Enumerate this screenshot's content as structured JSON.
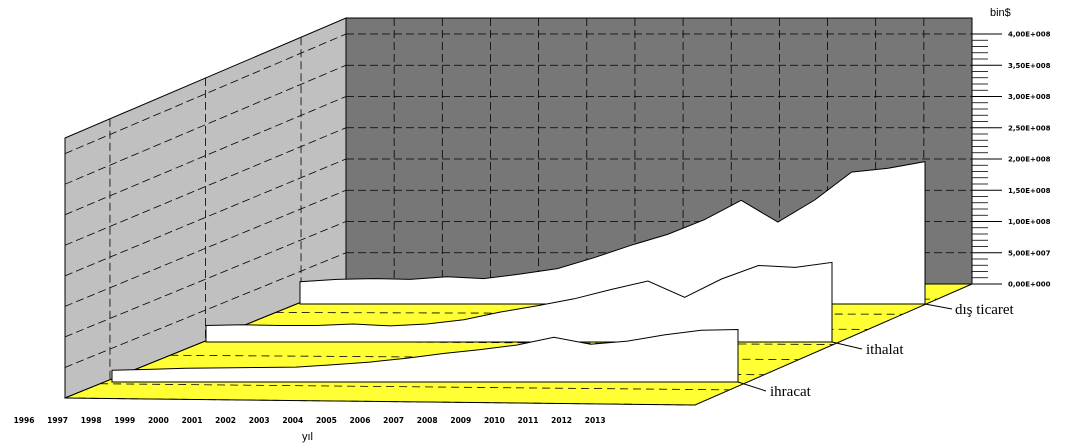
{
  "chart_data": {
    "type": "area",
    "title": "",
    "subtitle": "",
    "unit_label": "bin$",
    "xlabel": "yıl",
    "ylabel": "",
    "x_tick_labels": [
      "1996",
      "1997",
      "1998",
      "1999",
      "2000",
      "2001",
      "2002",
      "2003",
      "2004",
      "2005",
      "2006",
      "2007",
      "2008",
      "2009",
      "2010",
      "2011",
      "2012",
      "2013"
    ],
    "y_tick_labels": [
      "0,00E+000",
      "5,00E+007",
      "1,00E+008",
      "1,50E+008",
      "2,00E+008",
      "2,50E+008",
      "3,00E+008",
      "3,50E+008",
      "4,00E+008"
    ],
    "ylim": [
      0,
      400000000
    ],
    "grid": true,
    "colors": {
      "back_wall": "#777777",
      "side_wall": "#c0c0c0",
      "floor": "#ffff33",
      "series_fill": "#ffffff"
    },
    "series": [
      {
        "name": "dış ticaret",
        "x": [
          1996,
          1997,
          1998,
          1999,
          2000,
          2001,
          2002,
          2003,
          2004,
          2005,
          2006,
          2007,
          2008,
          2009,
          2010,
          2011,
          2012,
          2013
        ],
        "values": [
          42000000,
          48000000,
          50000000,
          48000000,
          55000000,
          50000000,
          62000000,
          76000000,
          104000000,
          136000000,
          164000000,
          202000000,
          252000000,
          196000000,
          253000000,
          325000000,
          335000000,
          352000000
        ]
      },
      {
        "name": "ithalat",
        "x": [
          1996,
          1997,
          1998,
          1999,
          2000,
          2001,
          2002,
          2003,
          2004,
          2005,
          2006,
          2007,
          2008,
          2009,
          2010,
          2011,
          2012,
          2013
        ],
        "values": [
          27000000,
          29000000,
          27000000,
          27000000,
          31000000,
          26000000,
          31000000,
          42000000,
          62000000,
          78000000,
          96000000,
          120000000,
          142000000,
          100000000,
          147000000,
          182000000,
          177000000,
          190000000
        ]
      },
      {
        "name": "ihracat",
        "x": [
          1996,
          1997,
          1998,
          1999,
          2000,
          2001,
          2002,
          2003,
          2004,
          2005,
          2006,
          2007,
          2008,
          2009,
          2010,
          2011,
          2012,
          2013
        ],
        "values": [
          15000000,
          17000000,
          20000000,
          21000000,
          22000000,
          23000000,
          29000000,
          36000000,
          46000000,
          58000000,
          68000000,
          80000000,
          100000000,
          82000000,
          90000000,
          106000000,
          118000000,
          120000000
        ]
      }
    ]
  }
}
